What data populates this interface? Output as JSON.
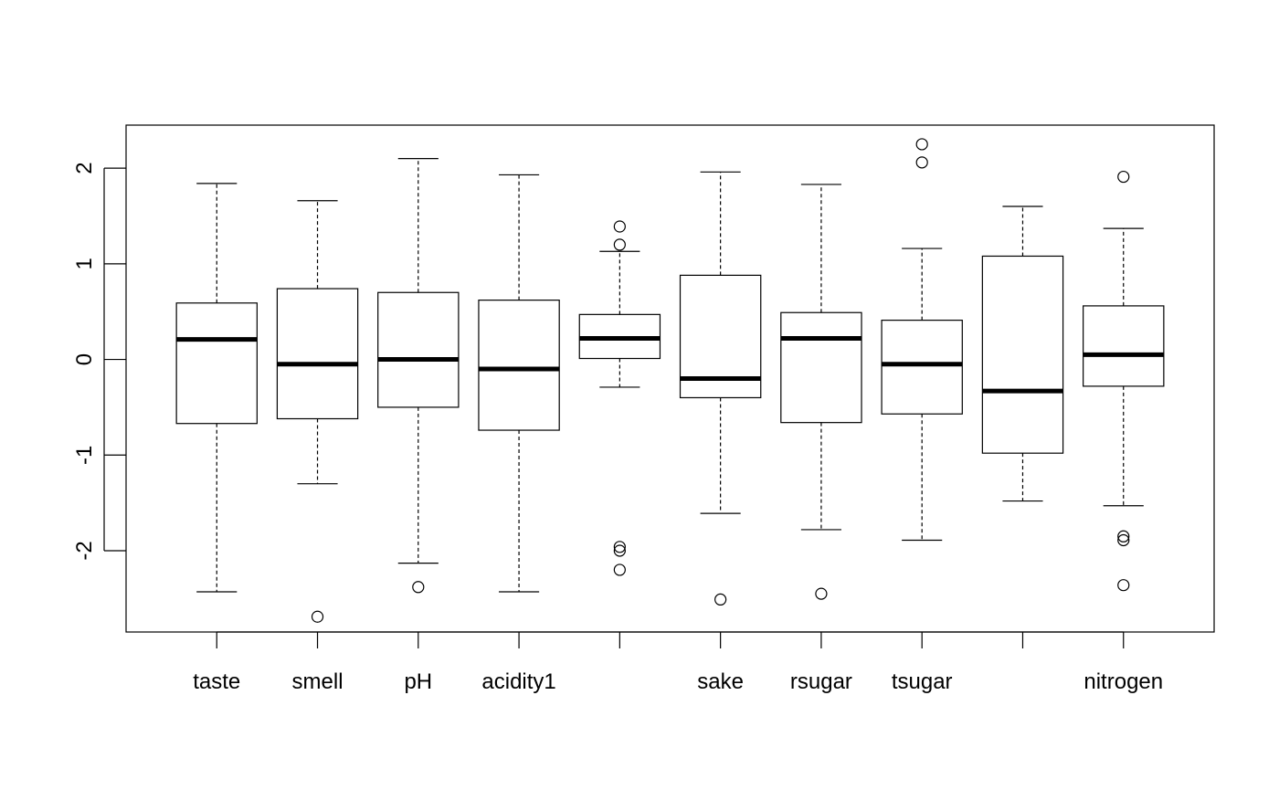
{
  "chart_data": {
    "type": "boxplot",
    "title": "",
    "xlabel": "",
    "ylabel": "",
    "ylim": [
      -2.85,
      2.45
    ],
    "yticks": [
      -2,
      -1,
      0,
      1,
      2
    ],
    "ytick_labels": [
      "-2",
      "-1",
      "0",
      "1",
      "2"
    ],
    "grid": false,
    "categories": [
      "taste",
      "smell",
      "pH",
      "acidity1",
      "",
      "sake",
      "rsugar",
      "tsugar",
      "",
      "nitrogen"
    ],
    "boxes": [
      {
        "label": "taste",
        "whisker_low": -2.43,
        "q1": -0.67,
        "median": 0.21,
        "q3": 0.59,
        "whisker_high": 1.84,
        "outliers": []
      },
      {
        "label": "smell",
        "whisker_low": -1.3,
        "q1": -0.62,
        "median": -0.05,
        "q3": 0.74,
        "whisker_high": 1.66,
        "outliers": [
          -2.69
        ]
      },
      {
        "label": "pH",
        "whisker_low": -2.13,
        "q1": -0.5,
        "median": 0.0,
        "q3": 0.7,
        "whisker_high": 2.1,
        "outliers": [
          -2.38
        ]
      },
      {
        "label": "acidity1",
        "whisker_low": -2.43,
        "q1": -0.74,
        "median": -0.1,
        "q3": 0.62,
        "whisker_high": 1.93,
        "outliers": []
      },
      {
        "label": "",
        "whisker_low": -0.29,
        "q1": 0.01,
        "median": 0.22,
        "q3": 0.47,
        "whisker_high": 1.13,
        "outliers": [
          1.39,
          1.2,
          -1.96,
          -2.0,
          -2.2
        ]
      },
      {
        "label": "sake",
        "whisker_low": -1.61,
        "q1": -0.4,
        "median": -0.2,
        "q3": 0.88,
        "whisker_high": 1.96,
        "outliers": [
          -2.51
        ]
      },
      {
        "label": "rsugar",
        "whisker_low": -1.78,
        "q1": -0.66,
        "median": 0.22,
        "q3": 0.49,
        "whisker_high": 1.83,
        "outliers": [
          -2.45
        ]
      },
      {
        "label": "tsugar",
        "whisker_low": -1.89,
        "q1": -0.57,
        "median": -0.05,
        "q3": 0.41,
        "whisker_high": 1.16,
        "outliers": [
          2.25,
          2.06
        ]
      },
      {
        "label": "",
        "whisker_low": -1.48,
        "q1": -0.98,
        "median": -0.33,
        "q3": 1.08,
        "whisker_high": 1.6,
        "outliers": []
      },
      {
        "label": "nitrogen",
        "whisker_low": -1.53,
        "q1": -0.28,
        "median": 0.05,
        "q3": 0.56,
        "whisker_high": 1.37,
        "outliers": [
          1.91,
          -1.85,
          -1.89,
          -2.36
        ]
      }
    ]
  }
}
